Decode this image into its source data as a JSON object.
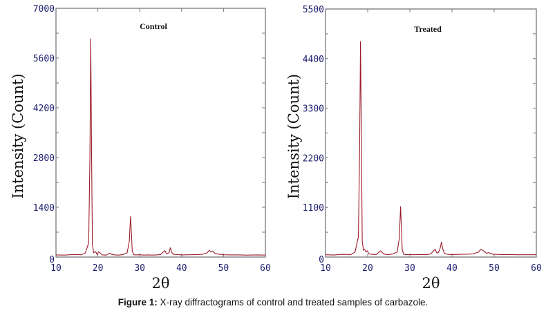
{
  "caption": {
    "label": "Figure 1:",
    "text": " X-ray diffractograms of control and treated samples of carbazole."
  },
  "colors": {
    "trace": "#9b1b2a",
    "tick_label": "#1c1c6e",
    "frame": "#777780"
  },
  "chart_data": [
    {
      "type": "line",
      "title": "Control",
      "xlabel": "2θ",
      "ylabel": "Intensity (Count)",
      "xlim": [
        10,
        60
      ],
      "ylim": [
        0,
        7000
      ],
      "xticks": [
        10,
        20,
        30,
        40,
        50,
        60
      ],
      "yticks": [
        0,
        1400,
        2800,
        4200,
        5600,
        7000
      ],
      "grid": false,
      "series": [
        {
          "name": "Control",
          "x": [
            10,
            12,
            14,
            16,
            17,
            17.8,
            18.1,
            18.3,
            18.5,
            18.7,
            19.0,
            19.5,
            19.8,
            20.2,
            21,
            22,
            22.8,
            23.2,
            24,
            25,
            26,
            27,
            27.5,
            27.8,
            28.0,
            28.2,
            28.5,
            29,
            30,
            31,
            32,
            33,
            34,
            35,
            35.6,
            36.0,
            36.4,
            37,
            37.3,
            37.6,
            38,
            39,
            40,
            42,
            44,
            45,
            46,
            46.6,
            47.0,
            47.4,
            48,
            48.5,
            49,
            50,
            52,
            54,
            55,
            56,
            58,
            60
          ],
          "y": [
            60,
            55,
            70,
            65,
            110,
            400,
            2800,
            6140,
            2900,
            350,
            120,
            150,
            70,
            150,
            60,
            55,
            110,
            75,
            60,
            55,
            70,
            120,
            450,
            1140,
            700,
            180,
            70,
            60,
            65,
            55,
            60,
            55,
            60,
            70,
            140,
            180,
            90,
            120,
            260,
            140,
            75,
            70,
            60,
            65,
            70,
            80,
            110,
            190,
            140,
            170,
            100,
            90,
            80,
            65,
            60,
            60,
            55,
            55,
            60,
            55
          ]
        }
      ]
    },
    {
      "type": "line",
      "title": "Treated",
      "xlabel": "2θ",
      "ylabel": "Intensity (Count)",
      "xlim": [
        10,
        60
      ],
      "ylim": [
        0,
        5500
      ],
      "xticks": [
        10,
        20,
        30,
        40,
        50,
        60
      ],
      "yticks": [
        0,
        1100,
        2200,
        3300,
        4400,
        5500
      ],
      "grid": false,
      "series": [
        {
          "name": "Treated",
          "x": [
            10,
            12,
            14,
            16,
            17,
            17.8,
            18.1,
            18.3,
            18.5,
            18.7,
            19.0,
            19.3,
            19.6,
            19.9,
            20.3,
            21,
            22,
            22.7,
            23.1,
            23.5,
            24,
            25,
            26,
            27,
            27.5,
            27.8,
            28.0,
            28.2,
            28.5,
            29,
            30,
            31,
            32,
            34,
            35,
            35.6,
            36.0,
            36.4,
            36.8,
            37.2,
            37.5,
            37.8,
            38.2,
            39,
            40,
            42,
            44,
            45,
            45.6,
            46.3,
            46.8,
            47.2,
            47.7,
            48.2,
            48.7,
            49.2,
            50,
            52,
            54,
            55,
            56,
            58,
            60
          ],
          "y": [
            50,
            45,
            60,
            55,
            110,
            450,
            2500,
            4780,
            2600,
            350,
            150,
            170,
            110,
            140,
            70,
            60,
            55,
            110,
            140,
            90,
            60,
            55,
            70,
            110,
            420,
            1120,
            650,
            160,
            65,
            55,
            55,
            50,
            55,
            55,
            70,
            140,
            170,
            90,
            100,
            200,
            330,
            180,
            80,
            60,
            55,
            60,
            65,
            70,
            90,
            110,
            170,
            150,
            130,
            80,
            100,
            70,
            60,
            55,
            55,
            50,
            50,
            50,
            50
          ]
        }
      ]
    }
  ]
}
